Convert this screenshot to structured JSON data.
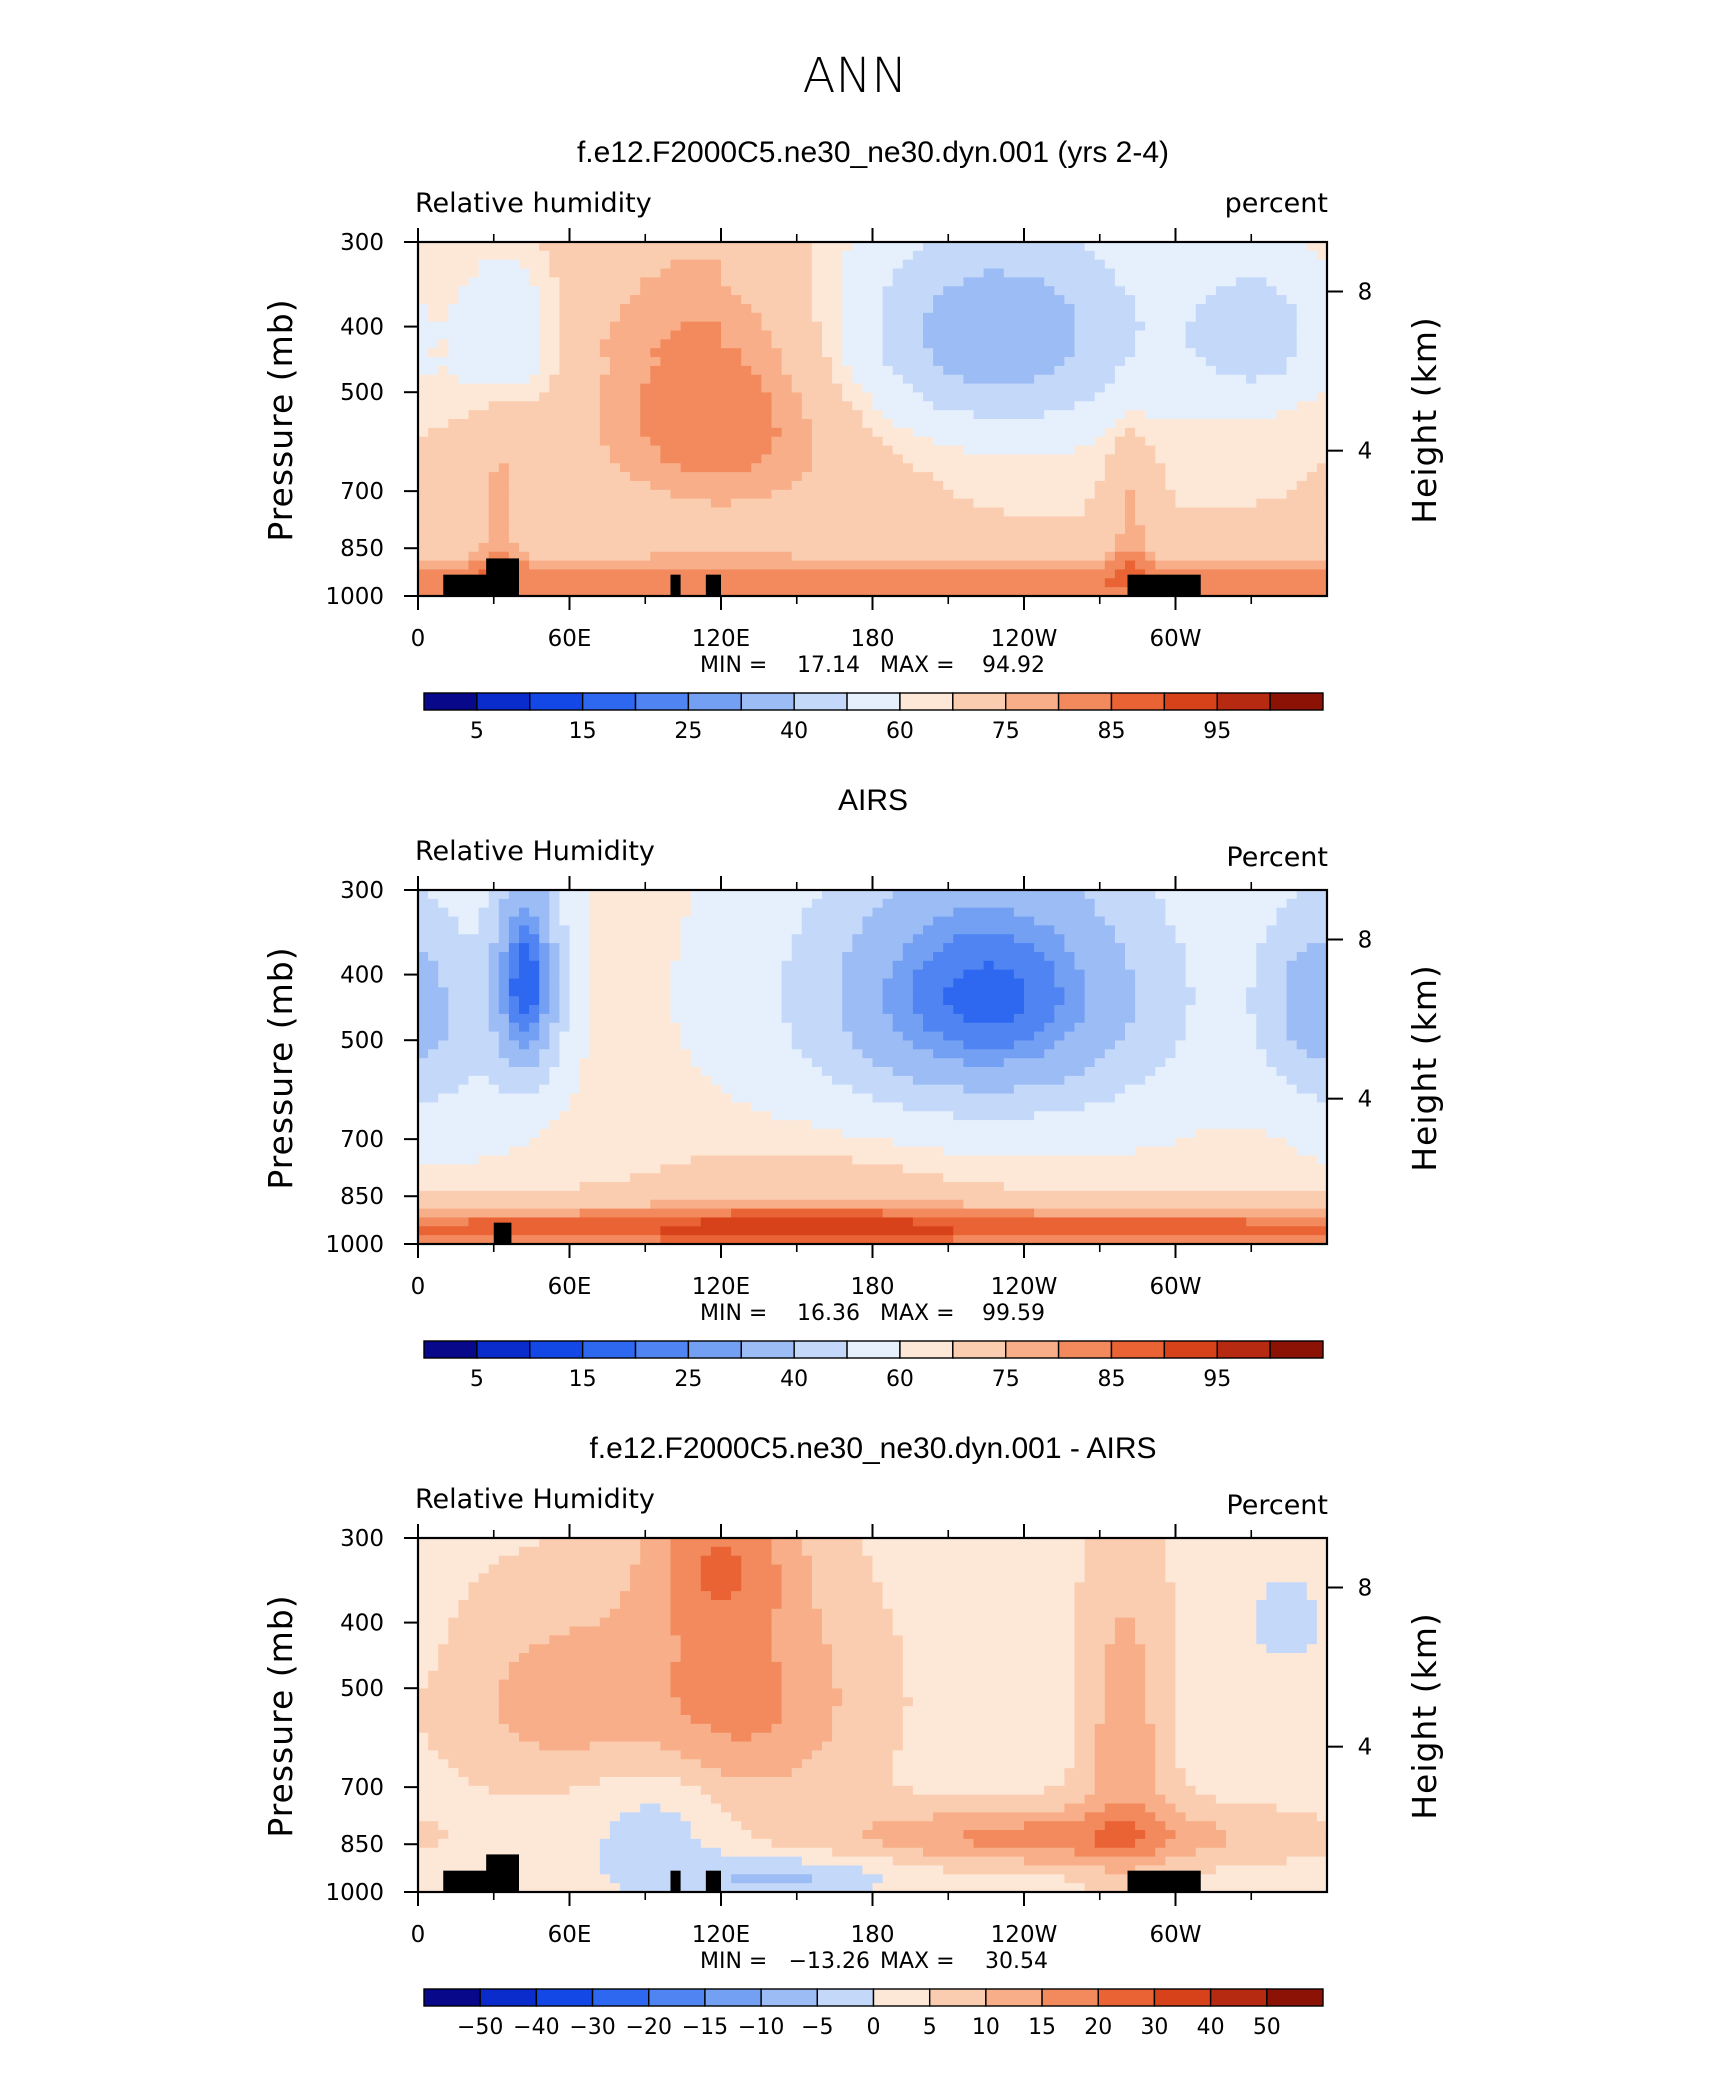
{
  "figure": {
    "title": "ANN"
  },
  "chart_data": [
    {
      "type": "heatmap",
      "title": "f.e12.F2000C5.ne30_ne30.dyn.001 (yrs 2-4)",
      "left_label": "Relative  humidity",
      "right_label": "percent",
      "ylabel": "Pressure  (mb)",
      "y2label": "Height  (km)",
      "xticks": [
        "0",
        "60E",
        "120E",
        "180",
        "120W",
        "60W"
      ],
      "yticks": [
        "300",
        "400",
        "500",
        "700",
        "850",
        "1000"
      ],
      "y2ticks": [
        "8",
        "4"
      ],
      "min_label": "MIN =",
      "min_value": "17.14",
      "max_label": "MAX =",
      "max_value": "94.92",
      "colorbar_labels": [
        "5",
        "15",
        "25",
        "40",
        "60",
        "75",
        "85",
        "95"
      ],
      "levels": [
        5,
        10,
        15,
        20,
        25,
        30,
        40,
        50,
        60,
        65,
        75,
        80,
        85,
        90,
        95
      ],
      "colors": [
        "#08088a",
        "#0a2ccc",
        "#1448e6",
        "#2f68f0",
        "#4f84f2",
        "#74a0f4",
        "#9cbcf6",
        "#c4d8fa",
        "#e6f0fc",
        "#fde8d8",
        "#fbcdb0",
        "#f8ae88",
        "#f28a5e",
        "#ea6334",
        "#d8421a",
        "#b52a10",
        "#8c1206"
      ],
      "base": {
        "value": 65,
        "sub": 2,
        "rows": [
          [
            2.0,
            0.5,
            0.0
          ],
          [
            0.5,
            0.2,
            0.0
          ],
          [
            0.0,
            0.0,
            0.0
          ]
        ]
      },
      "features": [
        {
          "x": 35,
          "y": 410,
          "sx": 14,
          "sy": 75,
          "a": -18
        },
        {
          "x": 228,
          "y": 410,
          "sx": 45,
          "sy": 110,
          "a": -33
        },
        {
          "x": 333,
          "y": 410,
          "sx": 20,
          "sy": 75,
          "a": -20
        },
        {
          "x": 120,
          "y": 530,
          "sx": 40,
          "sy": 170,
          "a": 20
        },
        {
          "x": 0,
          "y": 950,
          "sx": 999,
          "sy": 60,
          "a": 18
        },
        {
          "x": 32,
          "y": 740,
          "sx": 8,
          "sy": 160,
          "a": 10
        },
        {
          "x": 282,
          "y": 760,
          "sx": 6,
          "sy": 150,
          "a": 12
        }
      ],
      "terrain": [
        {
          "lon": [
            10,
            40
          ],
          "p": 930
        },
        {
          "lon": [
            27,
            40
          ],
          "p": 880
        },
        {
          "lon": [
            100,
            104
          ],
          "p": 930
        },
        {
          "lon": [
            114,
            120
          ],
          "p": 930
        },
        {
          "lon": [
            281,
            310
          ],
          "p": 930
        }
      ]
    },
    {
      "type": "heatmap",
      "title": "AIRS",
      "left_label": "Relative  Humidity",
      "right_label": "Percent",
      "ylabel": "Pressure  (mb)",
      "y2label": "Height  (km)",
      "xticks": [
        "0",
        "60E",
        "120E",
        "180",
        "120W",
        "60W"
      ],
      "yticks": [
        "300",
        "400",
        "500",
        "700",
        "850",
        "1000"
      ],
      "y2ticks": [
        "8",
        "4"
      ],
      "min_label": "MIN =",
      "min_value": "16.36",
      "max_label": "MAX =",
      "max_value": "99.59",
      "colorbar_labels": [
        "5",
        "15",
        "25",
        "40",
        "60",
        "75",
        "85",
        "95"
      ],
      "levels": [
        5,
        10,
        15,
        20,
        25,
        30,
        40,
        50,
        60,
        65,
        75,
        80,
        85,
        90,
        95
      ],
      "colors": [
        "#08088a",
        "#0a2ccc",
        "#1448e6",
        "#2f68f0",
        "#4f84f2",
        "#74a0f4",
        "#9cbcf6",
        "#c4d8fa",
        "#e6f0fc",
        "#fde8d8",
        "#fbcdb0",
        "#f8ae88",
        "#f28a5e",
        "#ea6334",
        "#d8421a",
        "#b52a10",
        "#8c1206"
      ],
      "base": {
        "value": 62,
        "sub": 4,
        "rows": [
          [
            0.0,
            0.0,
            0.0
          ],
          [
            0.0,
            0.0,
            0.0
          ],
          [
            0.0,
            0.0,
            0.0
          ]
        ]
      },
      "features": [
        {
          "x": 43,
          "y": 410,
          "sx": 10,
          "sy": 110,
          "a": -44
        },
        {
          "x": 225,
          "y": 430,
          "sx": 50,
          "sy": 140,
          "a": -44
        },
        {
          "x": 355,
          "y": 440,
          "sx": 16,
          "sy": 110,
          "a": -24
        },
        {
          "x": 0,
          "y": 950,
          "sx": 999,
          "sy": 55,
          "a": 25
        },
        {
          "x": 155,
          "y": 870,
          "sx": 50,
          "sy": 120,
          "a": 8
        },
        {
          "x": 15,
          "y": 520,
          "sx": 18,
          "sy": 150,
          "a": -8
        }
      ],
      "terrain": [
        {
          "lon": [
            30,
            37
          ],
          "p": 930
        }
      ]
    },
    {
      "type": "heatmap",
      "title": "f.e12.F2000C5.ne30_ne30.dyn.001 - AIRS",
      "left_label": "Relative  Humidity",
      "right_label": "Percent",
      "ylabel": "Pressure  (mb)",
      "y2label": "Height  (km)",
      "xticks": [
        "0",
        "60E",
        "120E",
        "180",
        "120W",
        "60W"
      ],
      "yticks": [
        "300",
        "400",
        "500",
        "700",
        "850",
        "1000"
      ],
      "y2ticks": [
        "8",
        "4"
      ],
      "min_label": "MIN =",
      "min_value": "−13.26",
      "max_label": "MAX =",
      "max_value": "30.54",
      "colorbar_labels": [
        "−50",
        "−40",
        "−30",
        "−20",
        "−15",
        "−10",
        "−5",
        "0",
        "5",
        "10",
        "15",
        "20",
        "30",
        "40",
        "50"
      ],
      "levels": [
        -50,
        -40,
        -30,
        -20,
        -15,
        -10,
        -5,
        0,
        5,
        10,
        15,
        20,
        30,
        40,
        50
      ],
      "colors": [
        "#08088a",
        "#0a2ccc",
        "#1448e6",
        "#2f68f0",
        "#4f84f2",
        "#74a0f4",
        "#9cbcf6",
        "#c4d8fa",
        "#fde8d8",
        "#fbcdb0",
        "#f8ae88",
        "#f28a5e",
        "#ea6334",
        "#d8421a",
        "#b52a10",
        "#8c1206"
      ],
      "base": {
        "value": 3,
        "sub": 0,
        "rows": [
          [
            0.0,
            0.0,
            0.0
          ],
          [
            0.0,
            0.0,
            0.0
          ],
          [
            0.0,
            0.0,
            0.0
          ]
        ]
      },
      "features": [
        {
          "x": 125,
          "y": 520,
          "sx": 35,
          "sy": 150,
          "a": 14
        },
        {
          "x": 50,
          "y": 520,
          "sx": 30,
          "sy": 120,
          "a": 8
        },
        {
          "x": 250,
          "y": 830,
          "sx": 60,
          "sy": 60,
          "a": 14
        },
        {
          "x": 280,
          "y": 600,
          "sx": 12,
          "sy": 250,
          "a": 10
        },
        {
          "x": 145,
          "y": 950,
          "sx": 30,
          "sy": 50,
          "a": -9
        },
        {
          "x": 95,
          "y": 800,
          "sx": 20,
          "sy": 150,
          "a": -7
        },
        {
          "x": 345,
          "y": 400,
          "sx": 12,
          "sy": 50,
          "a": -6
        },
        {
          "x": 120,
          "y": 320,
          "sx": 20,
          "sy": 60,
          "a": 12
        }
      ],
      "terrain": [
        {
          "lon": [
            10,
            40
          ],
          "p": 930
        },
        {
          "lon": [
            27,
            40
          ],
          "p": 880
        },
        {
          "lon": [
            100,
            104
          ],
          "p": 930
        },
        {
          "lon": [
            114,
            120
          ],
          "p": 930
        },
        {
          "lon": [
            281,
            310
          ],
          "p": 930
        }
      ]
    }
  ]
}
